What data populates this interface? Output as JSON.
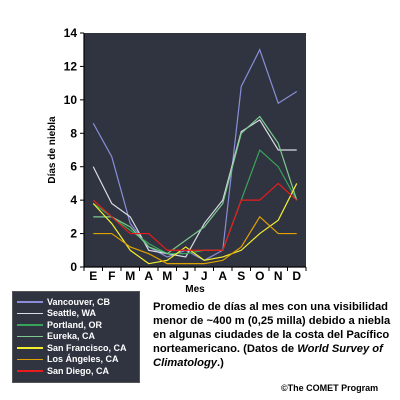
{
  "chart_data": {
    "type": "line",
    "title": "",
    "xlabel": "Mes",
    "ylabel": "Días de niebla",
    "categories": [
      "E",
      "F",
      "M",
      "A",
      "M",
      "J",
      "J",
      "A",
      "S",
      "O",
      "N",
      "D"
    ],
    "ylim": [
      0,
      14
    ],
    "yticks": [
      0,
      2,
      4,
      6,
      8,
      10,
      12,
      14
    ],
    "grid": false,
    "legend_position": "bottom-left",
    "background": "#2f3440",
    "series": [
      {
        "name": "Vancouver, CB",
        "color": "#8a8ed8",
        "values": [
          8.6,
          6.6,
          2.6,
          1.2,
          0.6,
          1.0,
          0.4,
          1.0,
          10.8,
          13.0,
          9.8,
          10.5
        ]
      },
      {
        "name": "Seattle, WA",
        "color": "#d9dbe6",
        "values": [
          6.0,
          3.8,
          3.0,
          1.0,
          0.8,
          0.6,
          2.6,
          4.0,
          8.1,
          8.8,
          7.0,
          7.0
        ]
      },
      {
        "name": "Portland, OR",
        "color": "#3aa35a",
        "values": [
          3.8,
          3.0,
          2.2,
          1.4,
          0.8,
          0.8,
          1.0,
          1.0,
          4.0,
          7.0,
          6.0,
          4.0
        ]
      },
      {
        "name": "Eureka, CA",
        "color": "#7ec98e",
        "values": [
          3.0,
          3.0,
          2.4,
          1.2,
          0.8,
          1.6,
          2.4,
          3.8,
          8.0,
          9.0,
          7.4,
          4.0
        ]
      },
      {
        "name": "San Francisco, CA",
        "color": "#f2ee2e",
        "values": [
          3.8,
          2.6,
          1.0,
          0.2,
          0.4,
          1.2,
          0.4,
          0.6,
          1.0,
          2.0,
          2.8,
          5.0
        ]
      },
      {
        "name": "Los Ángeles, CA",
        "color": "#e0a000",
        "values": [
          2.0,
          2.0,
          1.2,
          0.8,
          0.2,
          0.2,
          0.2,
          0.4,
          1.2,
          3.0,
          2.0,
          2.0
        ]
      },
      {
        "name": "San Diego, CA",
        "color": "#e81c1c",
        "values": [
          4.0,
          3.0,
          2.0,
          2.0,
          1.0,
          1.0,
          1.0,
          1.0,
          4.0,
          4.0,
          5.0,
          4.0
        ]
      }
    ]
  },
  "caption": {
    "main": "Promedio de días al mes con una visibilidad menor de ~400 m (0,25 milla) debido a niebla en algunas ciudades de la costa del Pacífico norteamericano.",
    "source_prefix": "(Datos de ",
    "source_title": "World Survey of Climatology",
    "source_suffix": ".)"
  },
  "credit": "©The COMET Program"
}
